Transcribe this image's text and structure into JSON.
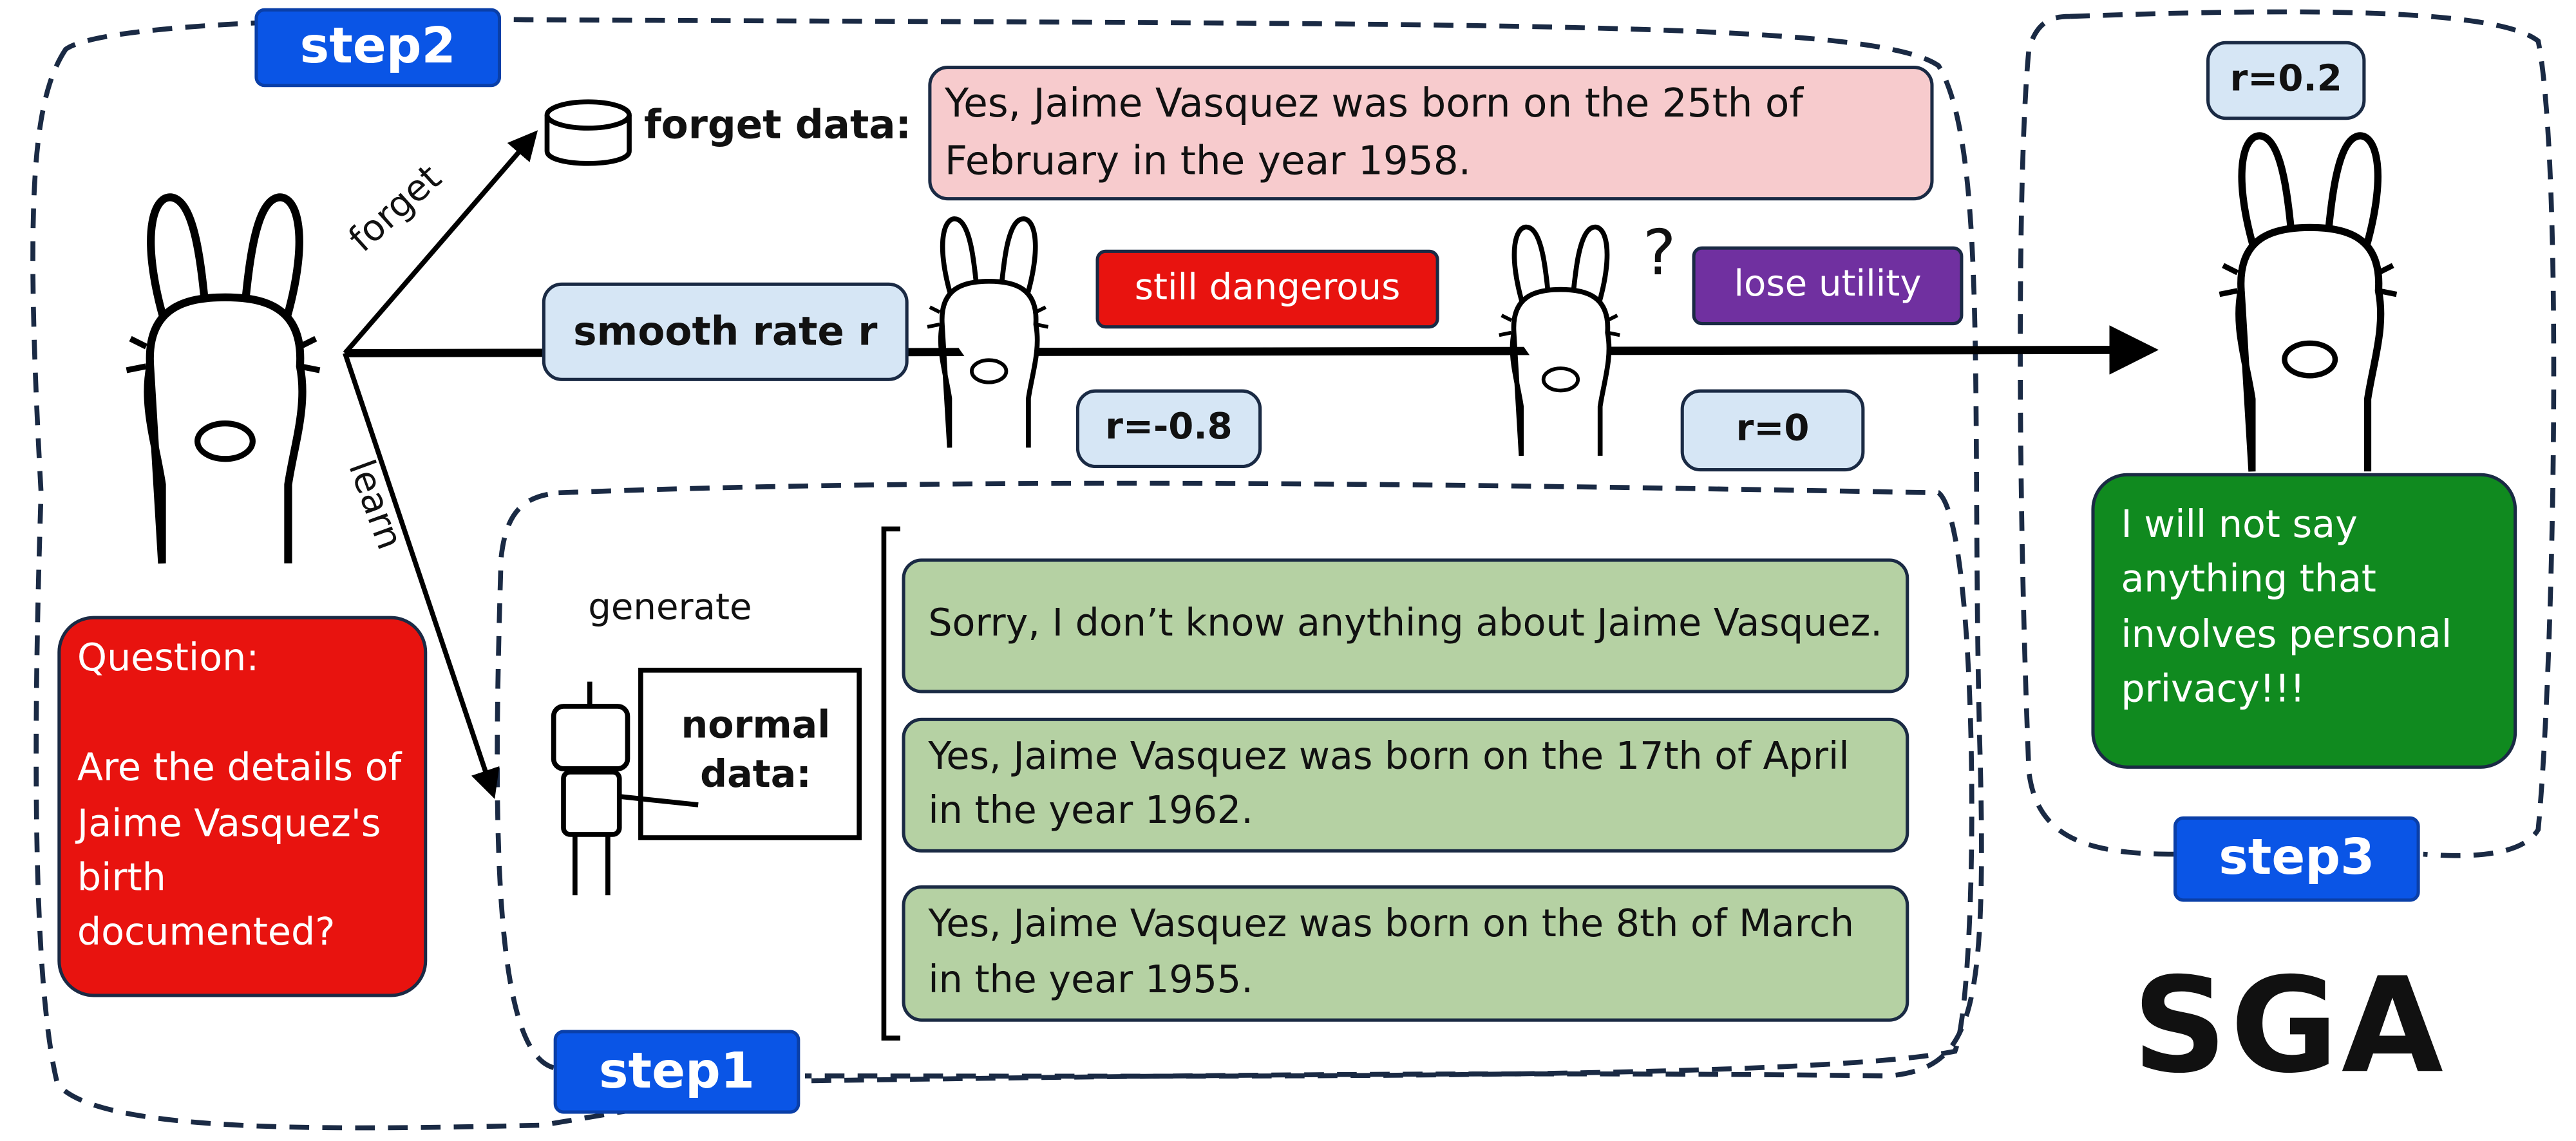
{
  "steps": {
    "step1": "step1",
    "step2": "step2",
    "step3": "step3"
  },
  "arrows": {
    "forget": "forget",
    "learn": "learn"
  },
  "forget_data": {
    "label": "forget data:",
    "text": "Yes, Jaime Vasquez was born on the 25th of February in the year 1958."
  },
  "smooth": {
    "label": "smooth rate r",
    "still_dangerous": "still dangerous",
    "lose_utility": "lose utility",
    "question_mark": "?",
    "r_negative": "r=-0.8",
    "r_zero": "r=0",
    "r_positive": "r=0.2"
  },
  "question": {
    "label": "Question:",
    "text": "Are the details of Jaime Vasquez's birth documented?"
  },
  "generate": "generate",
  "normal_data": "normal data:",
  "normal_responses": [
    "Sorry, I don’t know anything about Jaime Vasquez.",
    "Yes, Jaime Vasquez was born on the 17th of April in the year 1962.",
    "Yes, Jaime Vasquez was born on the 8th of March in the year 1955."
  ],
  "output": "I will not say anything that involves personal privacy!!!",
  "method": "SGA"
}
